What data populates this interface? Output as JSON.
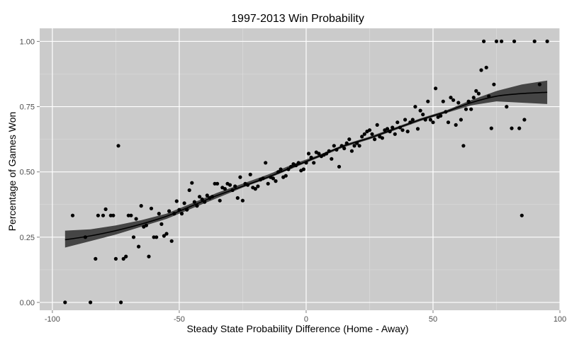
{
  "chart_data": {
    "type": "scatter",
    "title": "1997-2013 Win Probability",
    "xlabel": "Steady State Probability Difference (Home - Away)",
    "ylabel": "Percentage of Games Won",
    "xlim": [
      -105,
      100
    ],
    "ylim": [
      -0.03,
      1.05
    ],
    "grid": true,
    "x_ticks": [
      {
        "value": -100,
        "label": "-100"
      },
      {
        "value": -50,
        "label": "-50"
      },
      {
        "value": 0,
        "label": "0"
      },
      {
        "value": 50,
        "label": "50"
      },
      {
        "value": 100,
        "label": "100"
      }
    ],
    "y_ticks": [
      {
        "value": 0,
        "label": "0.00"
      },
      {
        "value": 0.25,
        "label": "0.25"
      },
      {
        "value": 0.5,
        "label": "0.50"
      },
      {
        "value": 0.75,
        "label": "0.75"
      },
      {
        "value": 1,
        "label": "1.00"
      }
    ],
    "colors": {
      "panel": "#cbcbcb",
      "grid_major": "#ffffff",
      "point": "#000000",
      "band": "#3a3a3a",
      "line": "#000000"
    },
    "points": [
      [
        -95,
        0.0
      ],
      [
        -92,
        0.333
      ],
      [
        -87,
        0.25
      ],
      [
        -85,
        0.0
      ],
      [
        -83,
        0.167
      ],
      [
        -82,
        0.333
      ],
      [
        -80,
        0.333
      ],
      [
        -79,
        0.357
      ],
      [
        -77,
        0.333
      ],
      [
        -76,
        0.333
      ],
      [
        -75,
        0.167
      ],
      [
        -74,
        0.6
      ],
      [
        -73,
        0.0
      ],
      [
        -72,
        0.167
      ],
      [
        -71,
        0.176
      ],
      [
        -70,
        0.333
      ],
      [
        -69,
        0.333
      ],
      [
        -68,
        0.25
      ],
      [
        -67,
        0.32
      ],
      [
        -66,
        0.214
      ],
      [
        -65,
        0.37
      ],
      [
        -64,
        0.29
      ],
      [
        -63,
        0.295
      ],
      [
        -62,
        0.176
      ],
      [
        -61,
        0.36
      ],
      [
        -60,
        0.25
      ],
      [
        -59,
        0.25
      ],
      [
        -58,
        0.34
      ],
      [
        -57,
        0.3
      ],
      [
        -56,
        0.255
      ],
      [
        -55,
        0.263
      ],
      [
        -54,
        0.35
      ],
      [
        -53,
        0.235
      ],
      [
        -52,
        0.34
      ],
      [
        -51,
        0.388
      ],
      [
        -50,
        0.355
      ],
      [
        -49,
        0.34
      ],
      [
        -48,
        0.38
      ],
      [
        -47,
        0.355
      ],
      [
        -46,
        0.43
      ],
      [
        -45,
        0.458
      ],
      [
        -44,
        0.385
      ],
      [
        -43,
        0.37
      ],
      [
        -42,
        0.405
      ],
      [
        -41,
        0.395
      ],
      [
        -40,
        0.385
      ],
      [
        -39,
        0.41
      ],
      [
        -38,
        0.4
      ],
      [
        -37,
        0.405
      ],
      [
        -36,
        0.455
      ],
      [
        -35,
        0.455
      ],
      [
        -34,
        0.39
      ],
      [
        -33,
        0.44
      ],
      [
        -32,
        0.435
      ],
      [
        -31,
        0.455
      ],
      [
        -30,
        0.45
      ],
      [
        -29,
        0.43
      ],
      [
        -28,
        0.445
      ],
      [
        -27,
        0.4
      ],
      [
        -26,
        0.48
      ],
      [
        -25,
        0.39
      ],
      [
        -24,
        0.455
      ],
      [
        -23,
        0.45
      ],
      [
        -22,
        0.49
      ],
      [
        -21,
        0.44
      ],
      [
        -20,
        0.435
      ],
      [
        -19,
        0.445
      ],
      [
        -18,
        0.47
      ],
      [
        -17,
        0.475
      ],
      [
        -16,
        0.535
      ],
      [
        -15,
        0.455
      ],
      [
        -14,
        0.48
      ],
      [
        -13,
        0.475
      ],
      [
        -12,
        0.465
      ],
      [
        -11,
        0.5
      ],
      [
        -10,
        0.51
      ],
      [
        -9,
        0.48
      ],
      [
        -8,
        0.485
      ],
      [
        -7,
        0.51
      ],
      [
        -6,
        0.52
      ],
      [
        -5,
        0.53
      ],
      [
        -4,
        0.525
      ],
      [
        -3,
        0.535
      ],
      [
        -2,
        0.505
      ],
      [
        -1,
        0.51
      ],
      [
        0,
        0.535
      ],
      [
        1,
        0.57
      ],
      [
        2,
        0.555
      ],
      [
        3,
        0.535
      ],
      [
        4,
        0.575
      ],
      [
        5,
        0.57
      ],
      [
        6,
        0.56
      ],
      [
        7,
        0.565
      ],
      [
        8,
        0.57
      ],
      [
        9,
        0.58
      ],
      [
        10,
        0.55
      ],
      [
        11,
        0.6
      ],
      [
        12,
        0.585
      ],
      [
        13,
        0.52
      ],
      [
        14,
        0.6
      ],
      [
        15,
        0.59
      ],
      [
        16,
        0.61
      ],
      [
        17,
        0.625
      ],
      [
        18,
        0.58
      ],
      [
        19,
        0.6
      ],
      [
        20,
        0.61
      ],
      [
        21,
        0.6
      ],
      [
        22,
        0.635
      ],
      [
        23,
        0.645
      ],
      [
        24,
        0.655
      ],
      [
        25,
        0.66
      ],
      [
        26,
        0.645
      ],
      [
        27,
        0.625
      ],
      [
        28,
        0.68
      ],
      [
        29,
        0.635
      ],
      [
        30,
        0.63
      ],
      [
        31,
        0.66
      ],
      [
        32,
        0.665
      ],
      [
        33,
        0.655
      ],
      [
        34,
        0.67
      ],
      [
        35,
        0.645
      ],
      [
        36,
        0.69
      ],
      [
        37,
        0.67
      ],
      [
        38,
        0.66
      ],
      [
        39,
        0.7
      ],
      [
        40,
        0.655
      ],
      [
        41,
        0.69
      ],
      [
        42,
        0.7
      ],
      [
        43,
        0.75
      ],
      [
        44,
        0.665
      ],
      [
        45,
        0.735
      ],
      [
        46,
        0.72
      ],
      [
        47,
        0.7
      ],
      [
        48,
        0.77
      ],
      [
        49,
        0.7
      ],
      [
        50,
        0.69
      ],
      [
        51,
        0.82
      ],
      [
        52,
        0.71
      ],
      [
        53,
        0.715
      ],
      [
        54,
        0.77
      ],
      [
        55,
        0.73
      ],
      [
        56,
        0.69
      ],
      [
        57,
        0.785
      ],
      [
        58,
        0.775
      ],
      [
        59,
        0.68
      ],
      [
        60,
        0.765
      ],
      [
        61,
        0.7
      ],
      [
        62,
        0.6
      ],
      [
        63,
        0.74
      ],
      [
        64,
        0.77
      ],
      [
        65,
        0.74
      ],
      [
        66,
        0.785
      ],
      [
        67,
        0.81
      ],
      [
        68,
        0.8
      ],
      [
        69,
        0.89
      ],
      [
        70,
        1.0
      ],
      [
        71,
        0.9
      ],
      [
        72,
        0.79
      ],
      [
        73,
        0.667
      ],
      [
        74,
        0.835
      ],
      [
        75,
        1.0
      ],
      [
        77,
        1.0
      ],
      [
        79,
        0.75
      ],
      [
        81,
        0.667
      ],
      [
        82,
        1.0
      ],
      [
        84,
        0.667
      ],
      [
        85,
        0.333
      ],
      [
        86,
        0.7
      ],
      [
        90,
        1.0
      ],
      [
        92,
        0.835
      ],
      [
        95,
        1.0
      ]
    ],
    "smooth": {
      "x": [
        -95,
        -85,
        -75,
        -65,
        -55,
        -45,
        -35,
        -25,
        -15,
        -5,
        5,
        15,
        25,
        35,
        45,
        55,
        65,
        75,
        85,
        95
      ],
      "y": [
        0.24,
        0.255,
        0.275,
        0.3,
        0.33,
        0.37,
        0.41,
        0.445,
        0.48,
        0.52,
        0.56,
        0.6,
        0.63,
        0.665,
        0.7,
        0.73,
        0.765,
        0.79,
        0.8,
        0.805
      ],
      "lower": [
        0.21,
        0.235,
        0.26,
        0.29,
        0.32,
        0.36,
        0.4,
        0.44,
        0.475,
        0.515,
        0.555,
        0.595,
        0.625,
        0.66,
        0.695,
        0.725,
        0.755,
        0.77,
        0.765,
        0.76
      ],
      "upper": [
        0.275,
        0.28,
        0.295,
        0.315,
        0.34,
        0.38,
        0.42,
        0.455,
        0.49,
        0.53,
        0.565,
        0.605,
        0.635,
        0.67,
        0.705,
        0.735,
        0.775,
        0.81,
        0.835,
        0.85
      ]
    }
  }
}
